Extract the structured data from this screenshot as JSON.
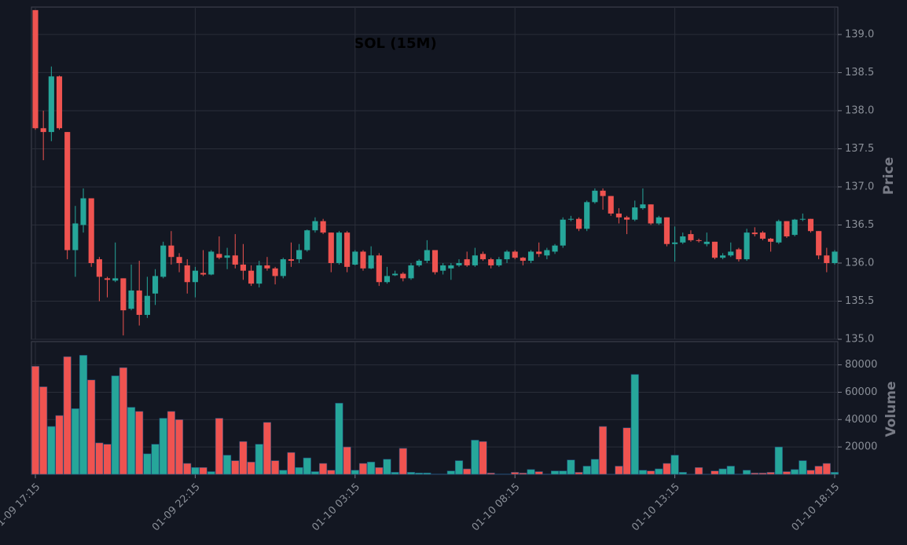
{
  "chart_data": {
    "type": "candlestick",
    "title": "SOL (15M)",
    "y_label": "Price",
    "y2_label": "Volume",
    "up_color": "#26a69a",
    "down_color": "#ef5350",
    "grid": true,
    "x": [
      "01-09 17:15",
      "01-09 17:30",
      "01-09 17:45",
      "01-09 18:00",
      "01-09 18:15",
      "01-09 18:30",
      "01-09 18:45",
      "01-09 19:00",
      "01-09 19:15",
      "01-09 19:30",
      "01-09 19:45",
      "01-09 20:00",
      "01-09 20:15",
      "01-09 20:30",
      "01-09 20:45",
      "01-09 21:00",
      "01-09 21:15",
      "01-09 21:30",
      "01-09 21:45",
      "01-09 22:00",
      "01-09 22:15",
      "01-09 22:30",
      "01-09 22:45",
      "01-09 23:00",
      "01-09 23:15",
      "01-09 23:30",
      "01-09 23:45",
      "01-10 00:00",
      "01-10 00:15",
      "01-10 00:30",
      "01-10 00:45",
      "01-10 01:00",
      "01-10 01:15",
      "01-10 01:30",
      "01-10 01:45",
      "01-10 02:00",
      "01-10 02:15",
      "01-10 02:30",
      "01-10 02:45",
      "01-10 03:00",
      "01-10 03:15",
      "01-10 03:30",
      "01-10 03:45",
      "01-10 04:00",
      "01-10 04:15",
      "01-10 04:30",
      "01-10 04:45",
      "01-10 05:00",
      "01-10 05:15",
      "01-10 05:30",
      "01-10 05:45",
      "01-10 06:00",
      "01-10 06:15",
      "01-10 06:30",
      "01-10 06:45",
      "01-10 07:00",
      "01-10 07:15",
      "01-10 07:30",
      "01-10 07:45",
      "01-10 08:00",
      "01-10 08:15",
      "01-10 08:30",
      "01-10 08:45",
      "01-10 09:00",
      "01-10 09:15",
      "01-10 09:30",
      "01-10 09:45",
      "01-10 10:00",
      "01-10 10:15",
      "01-10 10:30",
      "01-10 10:45",
      "01-10 11:00",
      "01-10 11:15",
      "01-10 11:30",
      "01-10 11:45",
      "01-10 12:00",
      "01-10 12:15",
      "01-10 12:30",
      "01-10 12:45",
      "01-10 13:00",
      "01-10 13:15",
      "01-10 13:30",
      "01-10 13:45",
      "01-10 14:00",
      "01-10 14:15",
      "01-10 14:30",
      "01-10 14:45",
      "01-10 15:00",
      "01-10 15:15",
      "01-10 15:30",
      "01-10 15:45",
      "01-10 16:00",
      "01-10 16:15",
      "01-10 16:30",
      "01-10 16:45",
      "01-10 17:00",
      "01-10 17:15",
      "01-10 17:30",
      "01-10 17:45",
      "01-10 18:00",
      "01-10 18:15"
    ],
    "xticks": [
      "01-09 17:15",
      "01-09 22:15",
      "01-10 03:15",
      "01-10 08:15",
      "01-10 13:15",
      "01-10 18:15"
    ],
    "open": [
      139.32,
      137.77,
      137.72,
      138.45,
      137.72,
      136.17,
      136.5,
      136.85,
      136.05,
      135.8,
      135.77,
      135.8,
      135.4,
      135.64,
      135.32,
      135.6,
      135.82,
      136.23,
      136.08,
      135.97,
      135.75,
      135.87,
      135.85,
      136.12,
      136.07,
      136.1,
      135.98,
      135.9,
      135.73,
      135.97,
      135.93,
      135.83,
      136.05,
      136.05,
      136.17,
      136.43,
      136.55,
      136.4,
      136.0,
      136.4,
      135.98,
      136.15,
      135.93,
      136.1,
      135.75,
      135.84,
      135.86,
      135.8,
      135.97,
      136.03,
      136.17,
      135.9,
      135.93,
      135.97,
      136.05,
      135.97,
      136.12,
      136.05,
      135.97,
      136.05,
      136.15,
      136.07,
      136.03,
      136.15,
      136.1,
      136.15,
      136.23,
      136.57,
      136.58,
      136.45,
      136.8,
      136.95,
      136.88,
      136.65,
      136.6,
      136.57,
      136.72,
      136.77,
      136.52,
      136.6,
      136.25,
      136.27,
      136.38,
      136.3,
      136.25,
      136.28,
      136.07,
      136.1,
      136.18,
      136.05,
      136.4,
      136.4,
      136.32,
      136.27,
      136.55,
      136.37,
      136.57,
      136.58,
      136.42,
      136.1,
      136.0
    ],
    "high": [
      139.32,
      138.0,
      138.58,
      138.46,
      137.72,
      136.75,
      136.98,
      136.85,
      136.08,
      135.82,
      136.27,
      135.8,
      135.98,
      136.03,
      135.82,
      135.92,
      136.28,
      136.42,
      136.13,
      136.05,
      135.95,
      136.17,
      136.17,
      136.35,
      136.2,
      136.38,
      136.25,
      135.97,
      136.03,
      136.08,
      135.95,
      136.07,
      136.27,
      136.25,
      136.44,
      136.6,
      136.58,
      136.4,
      136.42,
      136.42,
      136.17,
      136.17,
      136.22,
      136.13,
      135.95,
      135.9,
      135.88,
      136.0,
      136.05,
      136.3,
      136.17,
      136.0,
      136.0,
      136.05,
      136.15,
      136.2,
      136.15,
      136.07,
      136.08,
      136.17,
      136.17,
      136.08,
      136.17,
      136.27,
      136.2,
      136.25,
      136.6,
      136.62,
      136.6,
      136.82,
      136.98,
      136.98,
      136.88,
      136.72,
      136.62,
      136.82,
      136.98,
      136.77,
      136.62,
      136.6,
      136.48,
      136.4,
      136.43,
      136.32,
      136.4,
      136.28,
      136.13,
      136.27,
      136.2,
      136.45,
      136.47,
      136.42,
      136.33,
      136.57,
      136.55,
      136.58,
      136.65,
      136.58,
      136.42,
      136.2,
      136.17
    ],
    "low": [
      137.75,
      137.35,
      137.6,
      137.75,
      136.05,
      135.82,
      136.4,
      135.95,
      135.5,
      135.55,
      135.75,
      135.05,
      135.38,
      135.18,
      135.28,
      135.45,
      135.8,
      135.98,
      135.88,
      135.6,
      135.55,
      135.83,
      135.84,
      136.05,
      135.92,
      135.93,
      135.78,
      135.7,
      135.68,
      135.9,
      135.72,
      135.8,
      135.95,
      136.0,
      136.15,
      136.4,
      136.38,
      135.88,
      135.98,
      135.88,
      135.97,
      135.9,
      135.92,
      135.7,
      135.73,
      135.83,
      135.76,
      135.78,
      135.95,
      136.0,
      135.85,
      135.85,
      135.78,
      135.95,
      135.95,
      135.95,
      136.03,
      135.93,
      135.95,
      136.0,
      136.05,
      135.97,
      136.0,
      136.08,
      136.05,
      136.12,
      136.2,
      136.55,
      136.42,
      136.42,
      136.78,
      136.7,
      136.62,
      136.52,
      136.38,
      136.55,
      136.7,
      136.5,
      136.5,
      136.22,
      136.02,
      136.25,
      136.28,
      136.27,
      136.22,
      136.05,
      136.05,
      136.08,
      136.02,
      136.03,
      136.35,
      136.3,
      136.15,
      136.25,
      136.33,
      136.35,
      136.55,
      136.4,
      136.05,
      135.88,
      135.98
    ],
    "close": [
      137.77,
      137.72,
      138.45,
      137.77,
      136.17,
      136.52,
      136.85,
      136.0,
      135.82,
      135.78,
      135.8,
      135.38,
      135.64,
      135.32,
      135.57,
      135.83,
      136.23,
      136.08,
      136.0,
      135.75,
      135.9,
      135.85,
      136.15,
      136.07,
      136.1,
      135.98,
      135.9,
      135.73,
      135.97,
      135.93,
      135.83,
      136.05,
      136.03,
      136.17,
      136.43,
      136.55,
      136.4,
      136.0,
      136.4,
      135.95,
      136.15,
      135.93,
      136.1,
      135.75,
      135.83,
      135.86,
      135.8,
      135.97,
      136.03,
      136.17,
      135.88,
      135.97,
      135.97,
      136.0,
      135.97,
      136.1,
      136.05,
      135.97,
      136.05,
      136.15,
      136.07,
      136.03,
      136.15,
      136.12,
      136.17,
      136.23,
      136.57,
      136.58,
      136.45,
      136.8,
      136.95,
      136.88,
      136.65,
      136.6,
      136.57,
      136.73,
      136.77,
      136.52,
      136.6,
      136.25,
      136.27,
      136.35,
      136.3,
      136.29,
      136.28,
      136.07,
      136.1,
      136.15,
      136.05,
      136.4,
      136.38,
      136.32,
      136.28,
      136.55,
      136.35,
      136.57,
      136.58,
      136.42,
      136.1,
      136.0,
      136.15
    ],
    "volume": [
      79000,
      64000,
      35000,
      43000,
      86000,
      48000,
      87000,
      69000,
      23000,
      22000,
      72000,
      78000,
      49000,
      46000,
      15000,
      22000,
      41000,
      46000,
      40000,
      8000,
      5000,
      5000,
      2000,
      41000,
      14000,
      10000,
      24000,
      9000,
      22000,
      38000,
      10000,
      3000,
      16000,
      5000,
      12000,
      2000,
      8000,
      3000,
      52000,
      20000,
      3000,
      8000,
      9000,
      5000,
      11000,
      1500,
      19000,
      1500,
      1000,
      1000,
      200,
      200,
      2500,
      10000,
      4000,
      25000,
      24000,
      1000,
      200,
      200,
      1500,
      1000,
      3500,
      2000,
      200,
      2500,
      2500,
      10500,
      1500,
      6000,
      11000,
      35000,
      100,
      6000,
      34000,
      73000,
      3000,
      2500,
      4000,
      8000,
      14000,
      1500,
      100,
      5000,
      100,
      2500,
      4000,
      6000,
      200,
      3000,
      1000,
      1000,
      1500,
      20000,
      2000,
      3500,
      10000,
      3000,
      6000,
      8000,
      1500
    ],
    "ylim": [
      135.0,
      139.36
    ],
    "yticks": [
      {
        "value": 135,
        "label": "135.0"
      },
      135.5,
      {
        "value": 136,
        "label": "136.0"
      },
      136.5,
      {
        "value": 137,
        "label": "137.0"
      },
      137.5,
      {
        "value": 138,
        "label": "138.0"
      },
      138.5,
      {
        "value": 139,
        "label": "139.0"
      }
    ],
    "y2lim": [
      0,
      97000
    ],
    "y2ticks": [
      20000,
      40000,
      60000,
      80000
    ]
  }
}
